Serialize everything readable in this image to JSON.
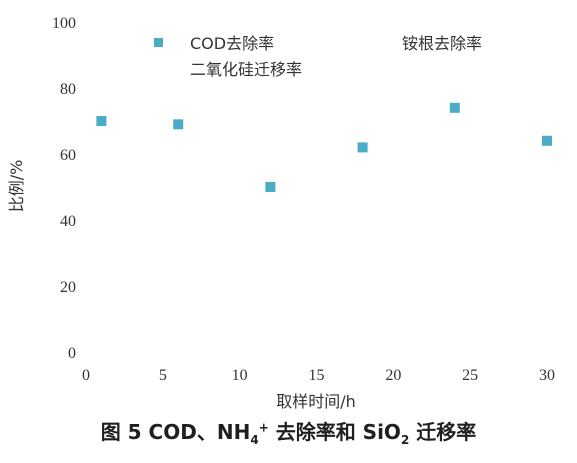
{
  "chart_data": {
    "type": "scatter",
    "ylabel": "比例/%",
    "xlabel": "取样时间/h",
    "xlim": [
      0,
      30
    ],
    "ylim": [
      0,
      100
    ],
    "x_ticks": [
      0,
      5,
      10,
      15,
      20,
      25,
      30
    ],
    "y_ticks": [
      0,
      20,
      40,
      60,
      80,
      100
    ],
    "grid": false,
    "legend_position": "top",
    "series": [
      {
        "name": "COD去除率",
        "color": "#4bacc6",
        "marker": "square",
        "x": [
          1,
          6,
          12,
          18,
          24,
          30
        ],
        "y": [
          70,
          69,
          50,
          62,
          74,
          64
        ]
      },
      {
        "name": "铵根去除率",
        "x": [],
        "y": []
      },
      {
        "name": "二氧化硅迁移率",
        "x": [],
        "y": []
      }
    ]
  },
  "caption": {
    "part1": "图 5  COD、NH",
    "sub1": "4",
    "sup1": "+",
    "part2": " 去除率和 SiO",
    "sub2": "2",
    "part3": " 迁移率"
  }
}
